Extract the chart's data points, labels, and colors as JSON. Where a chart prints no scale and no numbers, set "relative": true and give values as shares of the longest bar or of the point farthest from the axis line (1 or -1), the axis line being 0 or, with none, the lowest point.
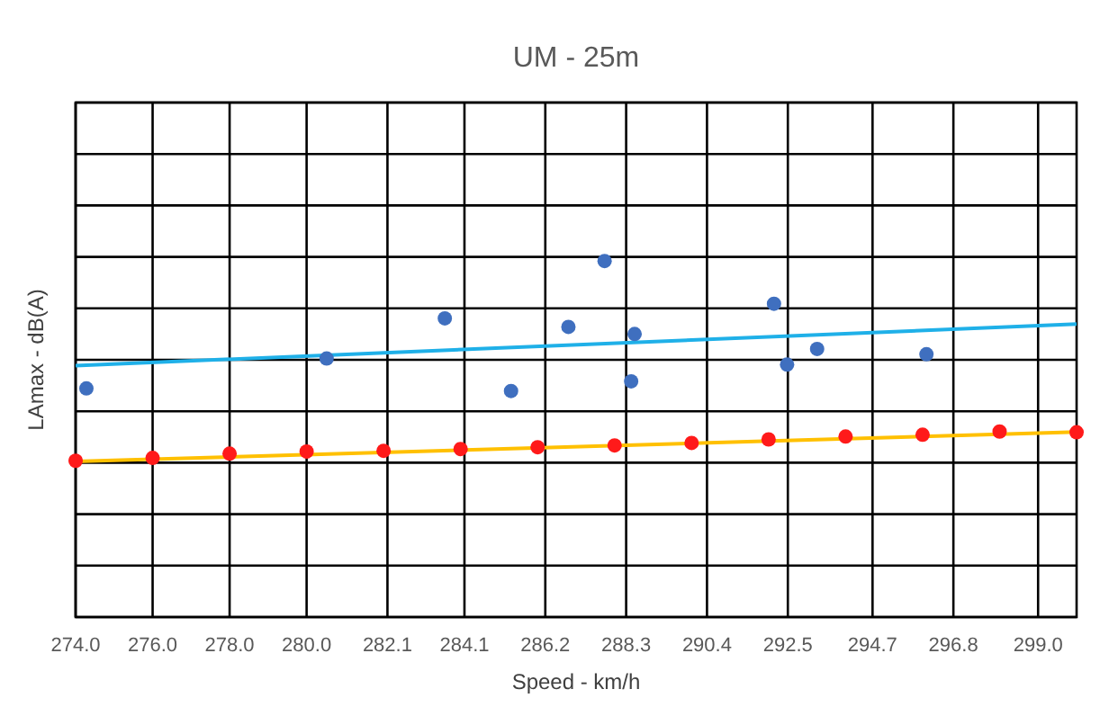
{
  "chart_data": {
    "type": "scatter",
    "title": "UM - 25m",
    "xlabel": "Speed -  km/h",
    "ylabel": "LAmax  -  dB(A)",
    "relative": true,
    "grid": true,
    "xlim": [
      274,
      300
    ],
    "xticks": [
      {
        "value": 274,
        "label": "274.0"
      },
      {
        "value": 276,
        "label": "276.0"
      },
      {
        "value": 278,
        "label": "278.0"
      },
      {
        "value": 280,
        "label": "280.0"
      },
      {
        "value": 282.1,
        "label": "282.1"
      },
      {
        "value": 284.1,
        "label": "284.1"
      },
      {
        "value": 286.2,
        "label": "286.2"
      },
      {
        "value": 288.3,
        "label": "288.3"
      },
      {
        "value": 290.4,
        "label": "290.4"
      },
      {
        "value": 292.5,
        "label": "292.5"
      },
      {
        "value": 294.7,
        "label": "294.7"
      },
      {
        "value": 296.8,
        "label": "296.8"
      },
      {
        "value": 299,
        "label": "299.0"
      }
    ],
    "series": [
      {
        "color": "#3f6fbf",
        "x": [
          274.28,
          280.52,
          283.59,
          285.31,
          286.8,
          287.74,
          288.52,
          288.43,
          292.14,
          292.48,
          293.26,
          296.1
        ],
        "values": [
          0.642,
          0.726,
          0.839,
          0.635,
          0.815,
          1,
          0.795,
          0.662,
          0.88,
          0.709,
          0.753,
          0.738
        ]
      },
      {
        "type": "line",
        "color": "#1fb0e8",
        "x": [
          274,
          300
        ],
        "values": [
          0.706,
          0.823
        ]
      },
      {
        "color": "#ff1a1a",
        "x": [
          274,
          276,
          278,
          280,
          282,
          284,
          286,
          288,
          290,
          292,
          294,
          296,
          298,
          300
        ],
        "values": [
          0.439,
          0.447,
          0.459,
          0.465,
          0.467,
          0.472,
          0.477,
          0.482,
          0.489,
          0.499,
          0.507,
          0.512,
          0.521,
          0.519
        ]
      },
      {
        "type": "line",
        "color": "#ffc000",
        "x": [
          274,
          300
        ],
        "values": [
          0.437,
          0.52
        ]
      }
    ]
  }
}
